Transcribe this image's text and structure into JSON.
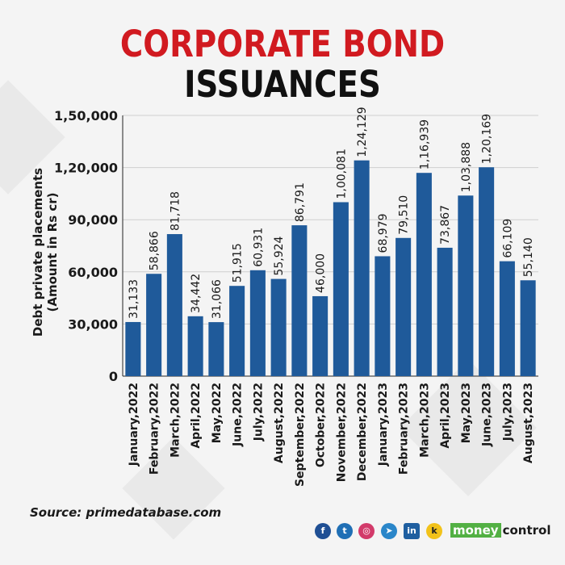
{
  "title_line1": "CORPORATE BOND",
  "title_line2": "ISSUANCES",
  "colors": {
    "title_red": "#d11a20",
    "bar": "#1f5a9a",
    "text": "#1a1a1a",
    "grid": "#cfcfcf"
  },
  "source": "Source: primedatabase.com",
  "footer": {
    "icons": [
      "facebook-icon",
      "twitter-icon",
      "instagram-icon",
      "telegram-icon",
      "linkedin-icon",
      "koo-icon"
    ],
    "logo_money": "money",
    "logo_control": "control"
  },
  "chart_data": {
    "type": "bar",
    "ylabel_line1": "Debt private placements",
    "ylabel_line2": "(Amount in Rs cr)",
    "ylim": [
      0,
      150000
    ],
    "yticks": [
      0,
      30000,
      60000,
      90000,
      120000,
      150000
    ],
    "ytick_labels": [
      "0",
      "30,000",
      "60,000",
      "90,000",
      "1,20,000",
      "1,50,000"
    ],
    "grid": true,
    "categories": [
      "January,2022",
      "February,2022",
      "March,2022",
      "April,2022",
      "May,2022",
      "June,2022",
      "July,2022",
      "August,2022",
      "September,2022",
      "October,2022",
      "November,2022",
      "December,2022",
      "January,2023",
      "February,2023",
      "March,2023",
      "April,2023",
      "May,2023",
      "June,2023",
      "July,2023",
      "August,2023"
    ],
    "values": [
      31133,
      58866,
      81718,
      34442,
      31066,
      51915,
      60931,
      55924,
      86791,
      46000,
      100081,
      124129,
      68979,
      79510,
      116939,
      73867,
      103888,
      120169,
      66109,
      55140
    ],
    "value_labels": [
      "31,133",
      "58,866",
      "81,718",
      "34,442",
      "31,066",
      "51,915",
      "60,931",
      "55,924",
      "86,791",
      "46,000",
      "1,00,081",
      "1,24,129",
      "68,979",
      "79,510",
      "1,16,939",
      "73,867",
      "1,03,888",
      "1,20,169",
      "66,109",
      "55,140"
    ]
  }
}
